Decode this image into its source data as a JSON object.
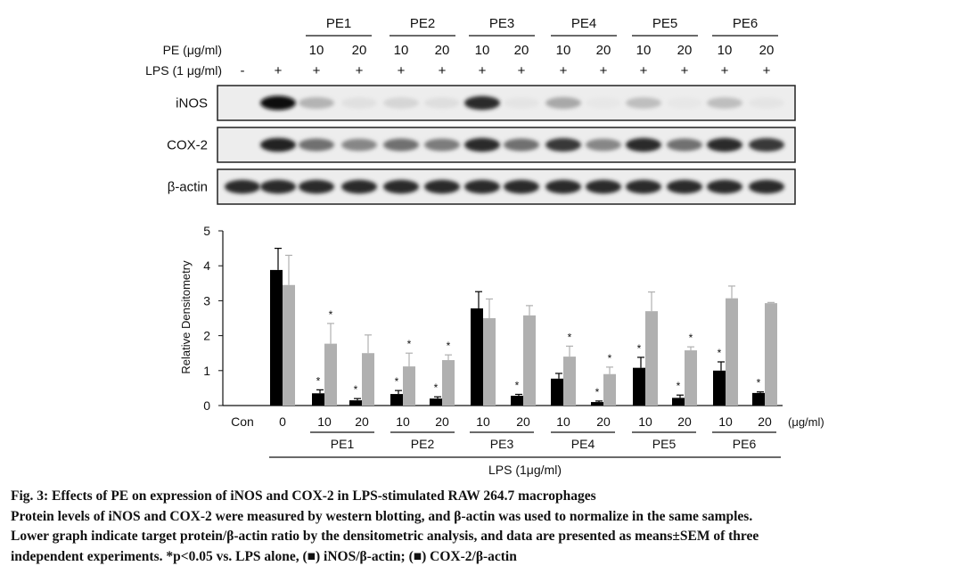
{
  "blot": {
    "groups": [
      "PE1",
      "PE2",
      "PE3",
      "PE4",
      "PE5",
      "PE6"
    ],
    "pe_label": "PE (μg/ml)",
    "lps_label": "LPS (1 μg/ml)",
    "doses": [
      "10",
      "20"
    ],
    "lps_signs": [
      "-",
      "+",
      "+",
      "+",
      "+",
      "+",
      "+",
      "+",
      "+",
      "+",
      "+",
      "+",
      "+",
      "+"
    ],
    "rows": [
      {
        "label": "iNOS",
        "intensity": [
          0,
          1.0,
          0.25,
          0.05,
          0.1,
          0.06,
          0.85,
          0.03,
          0.3,
          0.02,
          0.2,
          0.02,
          0.2,
          0.03
        ]
      },
      {
        "label": "COX-2",
        "intensity": [
          0,
          0.9,
          0.55,
          0.45,
          0.55,
          0.5,
          0.85,
          0.55,
          0.8,
          0.45,
          0.85,
          0.55,
          0.85,
          0.8
        ]
      },
      {
        "label": "β-actin",
        "intensity": [
          0.85,
          0.85,
          0.85,
          0.85,
          0.85,
          0.85,
          0.85,
          0.85,
          0.85,
          0.85,
          0.85,
          0.85,
          0.85,
          0.85
        ]
      }
    ]
  },
  "chart_data": {
    "type": "bar",
    "ylabel": "Relative Densitometry",
    "ylim": [
      0,
      5
    ],
    "yticks": [
      "0",
      "1",
      "2",
      "3",
      "4",
      "5"
    ],
    "categories": [
      "Con",
      "0",
      "10",
      "20",
      "10",
      "20",
      "10",
      "20",
      "10",
      "20",
      "10",
      "20",
      "10",
      "20"
    ],
    "unit_label": "(μg/ml)",
    "group_labels": [
      "PE1",
      "PE2",
      "PE3",
      "PE4",
      "PE5",
      "PE6"
    ],
    "lps_label": "LPS (1μg/ml)",
    "series": [
      {
        "color": "#000000",
        "values": [
          0,
          3.88,
          0.35,
          0.15,
          0.33,
          0.2,
          2.78,
          0.28,
          0.77,
          0.1,
          1.08,
          0.22,
          1.0,
          0.36
        ],
        "errors": [
          0,
          0.62,
          0.1,
          0.05,
          0.1,
          0.05,
          0.48,
          0.04,
          0.15,
          0.03,
          0.3,
          0.08,
          0.25,
          0.03
        ],
        "significant": [
          false,
          false,
          true,
          true,
          true,
          true,
          false,
          true,
          false,
          true,
          true,
          true,
          true,
          true
        ]
      },
      {
        "color": "#b0b0b0",
        "values": [
          0,
          3.45,
          1.77,
          1.5,
          1.12,
          1.3,
          2.5,
          2.58,
          1.4,
          0.9,
          2.7,
          1.58,
          3.07,
          2.93
        ],
        "errors": [
          0,
          0.85,
          0.58,
          0.52,
          0.38,
          0.15,
          0.55,
          0.28,
          0.3,
          0.2,
          0.55,
          0.1,
          0.35,
          0.02
        ],
        "significant": [
          false,
          false,
          true,
          false,
          true,
          true,
          false,
          false,
          true,
          true,
          false,
          true,
          false,
          false
        ]
      }
    ],
    "significance_marker": "*"
  },
  "caption": {
    "title": "Fig. 3: Effects of PE on expression of iNOS and COX-2 in LPS-stimulated RAW 264.7 macrophages",
    "line1": "Protein levels of iNOS and COX-2 were measured by western blotting, and β-actin was used to normalize in the same samples.",
    "line2": "Lower graph indicate target protein/β-actin ratio by the densitometric analysis, and data are presented as means±SEM of three",
    "line3": "independent experiments. *p<0.05 vs. LPS alone, (■) iNOS/β-actin; (■) COX-2/β-actin"
  }
}
